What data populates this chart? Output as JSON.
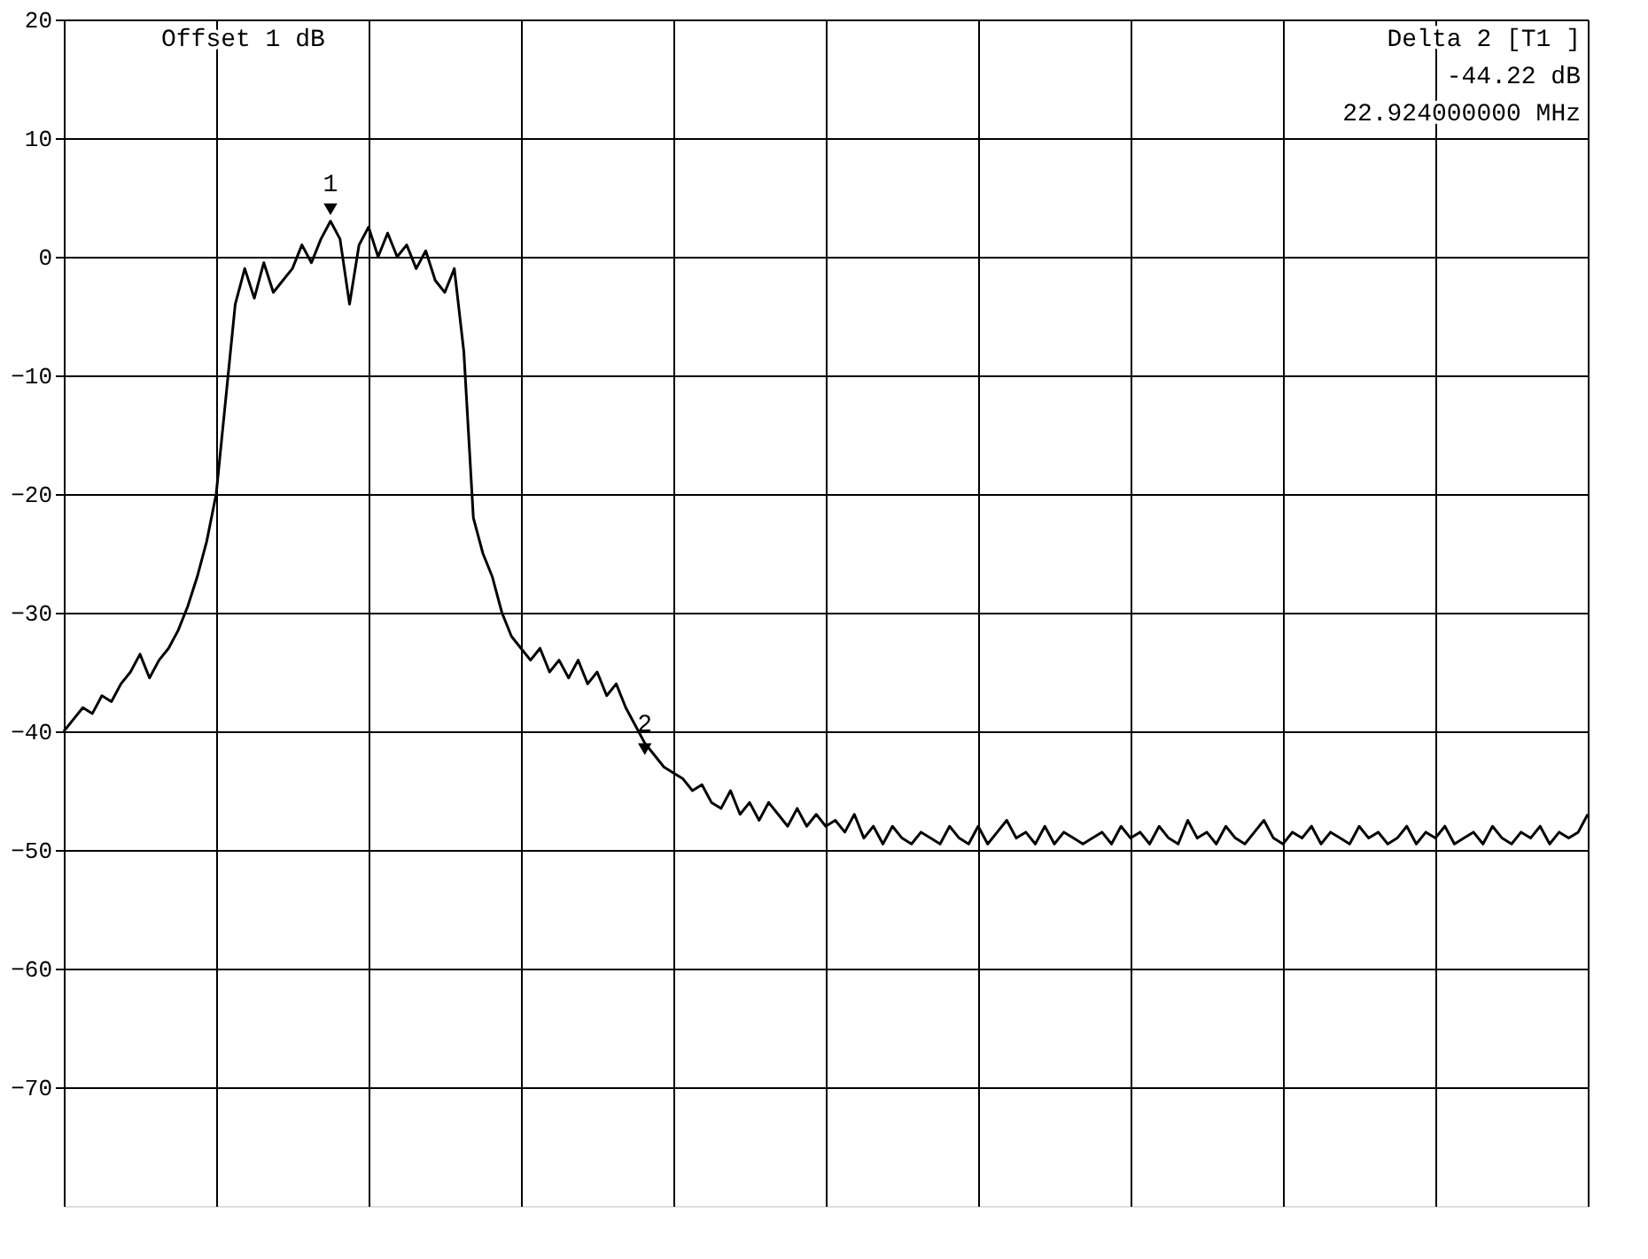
{
  "chart_data": {
    "type": "line",
    "categories": [
      null,
      null,
      null,
      null,
      null,
      null,
      null,
      null,
      null,
      null,
      null,
      null,
      null,
      null,
      null,
      null,
      null,
      null,
      null,
      null,
      null,
      null,
      null,
      null,
      null,
      null,
      null,
      null,
      null,
      null,
      null,
      null,
      null,
      null,
      null,
      null,
      null,
      null,
      null,
      null,
      null,
      null,
      null,
      null,
      null,
      null,
      null,
      null,
      null,
      null,
      null,
      null,
      null,
      null,
      null,
      null,
      null,
      null,
      null,
      null,
      null,
      null,
      null,
      null,
      null,
      null,
      null,
      null,
      null,
      null,
      null,
      null,
      null,
      null,
      null,
      null,
      null,
      null,
      null,
      null,
      null,
      null,
      null,
      null,
      null,
      null,
      null,
      null,
      null,
      null,
      null,
      null,
      null,
      null,
      null,
      null,
      null,
      null,
      null,
      null,
      null,
      null,
      null,
      null,
      null,
      null,
      null,
      null,
      null,
      null,
      null,
      null,
      null,
      null,
      null,
      null,
      null,
      null,
      null,
      null,
      null,
      null,
      null,
      null,
      null,
      null,
      null,
      null,
      null,
      null,
      null,
      null,
      null,
      null,
      null,
      null,
      null,
      null,
      null,
      null,
      null,
      null,
      null,
      null,
      null,
      null,
      null,
      null,
      null,
      null,
      null,
      null,
      null,
      null,
      null,
      null,
      null,
      null,
      null,
      null,
      null
    ],
    "series": [
      {
        "color": "#000000",
        "values": [
          -40,
          -39,
          -38,
          -38.5,
          -37,
          -37.5,
          -36,
          -35,
          -33.5,
          -35.5,
          -34,
          -33,
          -31.5,
          -29.5,
          -27,
          -24,
          -20,
          -12,
          -4,
          -1,
          -3.5,
          -0.5,
          -3,
          -2,
          -1,
          1,
          -0.5,
          1.5,
          3,
          1.5,
          -4,
          1,
          2.5,
          0,
          2,
          0,
          1,
          -1,
          0.5,
          -2,
          -3,
          -1,
          -8,
          -22,
          -25,
          -27,
          -30,
          -32,
          -33,
          -34,
          -33,
          -35,
          -34,
          -35.5,
          -34,
          -36,
          -35,
          -37,
          -36,
          -38,
          -39.5,
          -41,
          -42,
          -43,
          -43.5,
          -44,
          -45,
          -44.5,
          -46,
          -46.5,
          -45,
          -47,
          -46,
          -47.5,
          -46,
          -47,
          -48,
          -46.5,
          -48,
          -47,
          -48,
          -47.5,
          -48.5,
          -47,
          -49,
          -48,
          -49.5,
          -48,
          -49,
          -49.5,
          -48.5,
          -49,
          -49.5,
          -48,
          -49,
          -49.5,
          -48,
          -49.5,
          -48.5,
          -47.5,
          -49,
          -48.5,
          -49.5,
          -48,
          -49.5,
          -48.5,
          -49,
          -49.5,
          -49,
          -48.5,
          -49.5,
          -48,
          -49,
          -48.5,
          -49.5,
          -48,
          -49,
          -49.5,
          -47.5,
          -49,
          -48.5,
          -49.5,
          -48,
          -49,
          -49.5,
          -48.5,
          -47.5,
          -49,
          -49.5,
          -48.5,
          -49,
          -48,
          -49.5,
          -48.5,
          -49,
          -49.5,
          -48,
          -49,
          -48.5,
          -49.5,
          -49,
          -48,
          -49.5,
          -48.5,
          -49,
          -48,
          -49.5,
          -49,
          -48.5,
          -49.5,
          -48,
          -49,
          -49.5,
          -48.5,
          -49,
          -48,
          -49.5,
          -48.5,
          -49,
          -48.5,
          -47
        ]
      },
      {
        "type": "scatter",
        "color": "#000000",
        "marker": "triangle",
        "values": [
          null,
          null,
          null,
          null,
          null,
          null,
          null,
          null,
          null,
          null,
          null,
          null,
          null,
          null,
          null,
          null,
          null,
          null,
          null,
          null,
          null,
          null,
          null,
          null,
          null,
          null,
          null,
          null,
          4,
          null,
          null,
          null,
          null,
          null,
          null,
          null,
          null,
          null,
          null,
          null,
          null,
          null,
          null,
          null,
          null,
          null,
          null,
          null,
          null,
          null,
          null,
          null,
          null,
          null,
          null,
          null,
          null,
          null,
          null,
          null,
          null,
          -41.5,
          null,
          null,
          null,
          null,
          null,
          null,
          null,
          null,
          null,
          null,
          null,
          null,
          null,
          null,
          null,
          null,
          null,
          null,
          null,
          null,
          null,
          null,
          null,
          null,
          null,
          null,
          null,
          null,
          null,
          null,
          null,
          null,
          null,
          null,
          null,
          null,
          null,
          null,
          null,
          null,
          null,
          null,
          null,
          null,
          null,
          null,
          null,
          null,
          null,
          null,
          null,
          null,
          null,
          null,
          null,
          null,
          null,
          null,
          null,
          null,
          null,
          null,
          null,
          null,
          null,
          null,
          null,
          null,
          null,
          null,
          null,
          null,
          null,
          null,
          null,
          null,
          null,
          null,
          null,
          null,
          null,
          null,
          null,
          null,
          null,
          null,
          null,
          null,
          null,
          null,
          null,
          null,
          null,
          null,
          null,
          null,
          null,
          null,
          null
        ]
      }
    ],
    "ylim": [
      -80,
      20
    ],
    "yticks": [
      20,
      10,
      0,
      -10,
      -20,
      -30,
      -40,
      -50,
      -60,
      -70
    ],
    "grid": true,
    "annotations": [
      "Offset  1 dB",
      "Delta 2 [T1 ]",
      "-44.22 dB",
      "22.924000000 MHz",
      {
        "text": "1",
        "y": 4
      },
      {
        "text": "2",
        "y": -41.5
      }
    ]
  }
}
